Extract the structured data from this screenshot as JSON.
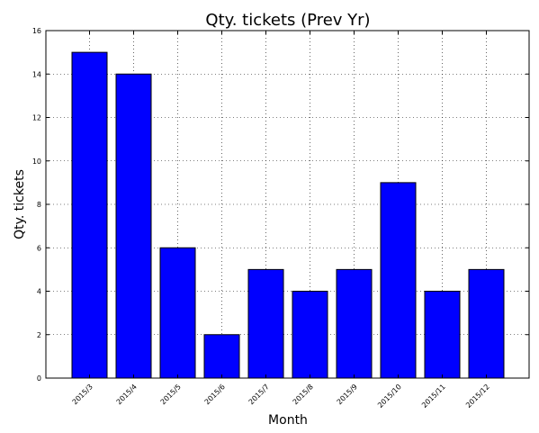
{
  "chart_data": {
    "type": "bar",
    "title": "Qty. tickets (Prev Yr)",
    "xlabel": "Month",
    "ylabel": "Qty. tickets",
    "categories": [
      "2015/3",
      "2015/4",
      "2015/5",
      "2015/6",
      "2015/7",
      "2015/8",
      "2015/9",
      "2015/10",
      "2015/11",
      "2015/12"
    ],
    "values": [
      15,
      14,
      6,
      2,
      5,
      4,
      5,
      9,
      4,
      5
    ],
    "ylim": [
      0,
      16
    ],
    "yticks": [
      0,
      2,
      4,
      6,
      8,
      10,
      12,
      14,
      16
    ],
    "grid": true,
    "grid_style": "dotted",
    "bar_color": "#0000ff",
    "edge_color": "#000000"
  }
}
